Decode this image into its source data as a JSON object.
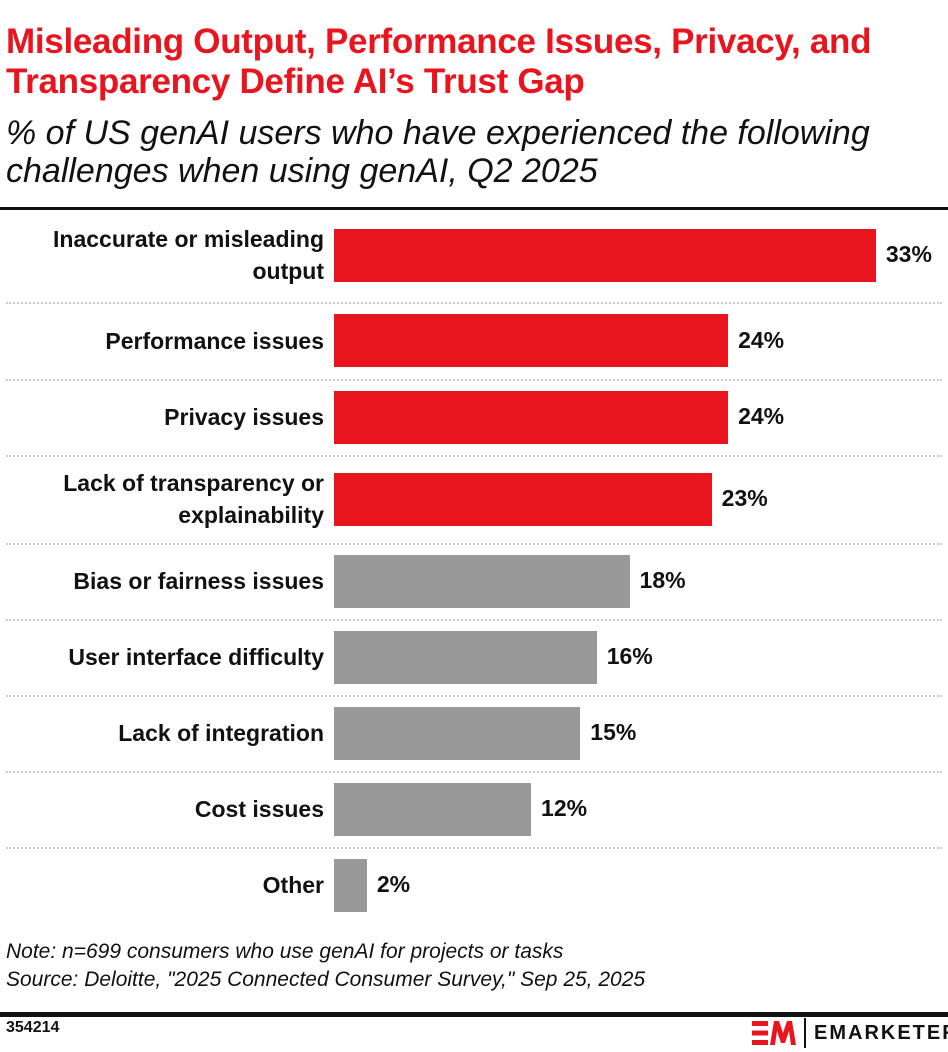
{
  "title": "Misleading Output, Performance Issues, Privacy, and Transparency Define AI’s Trust Gap",
  "subtitle": "% of US genAI users who have experienced the following challenges when using genAI, Q2 2025",
  "chart_data": {
    "type": "bar",
    "orientation": "horizontal",
    "categories": [
      "Inaccurate or misleading output",
      "Performance issues",
      "Privacy issues",
      "Lack of transparency or explainability",
      "Bias or fairness issues",
      "User interface difficulty",
      "Lack of integration",
      "Cost issues",
      "Other"
    ],
    "values": [
      33,
      24,
      24,
      23,
      18,
      16,
      15,
      12,
      2
    ],
    "value_labels": [
      "33%",
      "24%",
      "24%",
      "23%",
      "18%",
      "16%",
      "15%",
      "12%",
      "2%"
    ],
    "colors": [
      "#e8141e",
      "#e8141e",
      "#e8141e",
      "#e8141e",
      "#999999",
      "#999999",
      "#999999",
      "#999999",
      "#999999"
    ],
    "grid": false,
    "legend": "none"
  },
  "note": "Note: n=699 consumers who use genAI for projects or tasks",
  "source": "Source: Deloitte, \"2025 Connected Consumer Survey,\" Sep 25, 2025",
  "chart_id": "354214",
  "brand": {
    "mark": "EM",
    "name": "EMARKETER",
    "color": "#e8141e"
  }
}
